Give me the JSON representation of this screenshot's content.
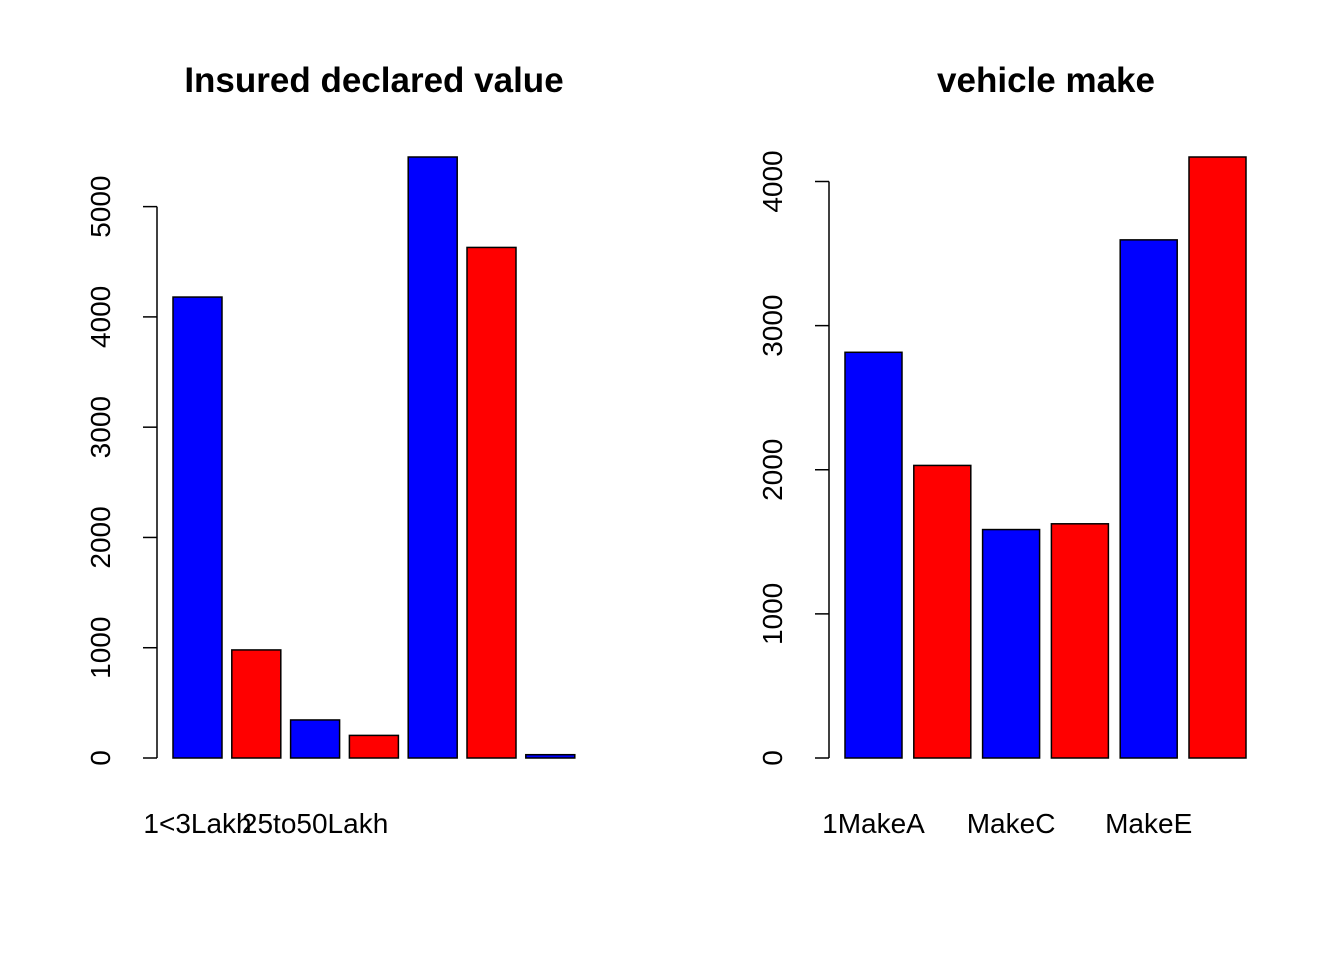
{
  "colors": {
    "series_a": "#0000ff",
    "series_b": "#ff0000",
    "axis": "#000000",
    "background": "#ffffff"
  },
  "chart_data": [
    {
      "type": "bar",
      "title": "Insured declared value",
      "xlabel": "",
      "ylabel": "",
      "categories": [
        "1<3Lakh",
        "",
        "25to50Lakh",
        "",
        "",
        "",
        ""
      ],
      "values": [
        4180,
        980,
        345,
        205,
        5450,
        4630,
        30
      ],
      "bar_colors": [
        "#0000ff",
        "#ff0000",
        "#0000ff",
        "#ff0000",
        "#0000ff",
        "#ff0000",
        "#0000ff"
      ],
      "ylim": [
        0,
        5450
      ],
      "yticks": [
        0,
        1000,
        2000,
        3000,
        4000,
        5000
      ],
      "ytick_labels": [
        "0",
        "1000",
        "2000",
        "3000",
        "4000",
        "5000"
      ],
      "grid": false,
      "legend": "none"
    },
    {
      "type": "bar",
      "title": "vehicle make",
      "xlabel": "",
      "ylabel": "",
      "categories": [
        "1MakeA",
        "",
        "MakeC",
        "",
        "MakeE",
        ""
      ],
      "values": [
        2815,
        2030,
        1585,
        1625,
        3595,
        4170
      ],
      "bar_colors": [
        "#0000ff",
        "#ff0000",
        "#0000ff",
        "#ff0000",
        "#0000ff",
        "#ff0000"
      ],
      "ylim": [
        0,
        4170
      ],
      "yticks": [
        0,
        1000,
        2000,
        3000,
        4000
      ],
      "ytick_labels": [
        "0",
        "1000",
        "2000",
        "3000",
        "4000"
      ],
      "grid": false,
      "legend": "none"
    }
  ]
}
